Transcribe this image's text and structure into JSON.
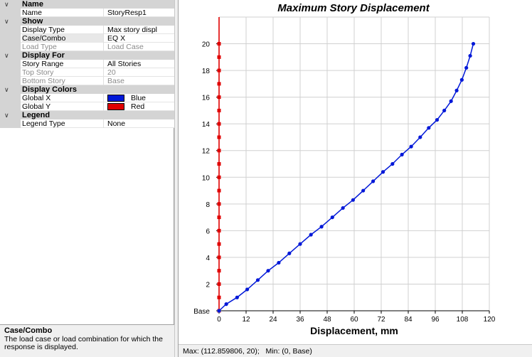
{
  "properties": {
    "sections": [
      {
        "title": "Name",
        "rows": [
          {
            "key": "Name",
            "value": "StoryResp1"
          }
        ]
      },
      {
        "title": "Show",
        "rows": [
          {
            "key": "Display Type",
            "value": "Max story displ"
          },
          {
            "key": "Case/Combo",
            "value": "EQ X",
            "selected": true
          },
          {
            "key": "Load Type",
            "value": "Load Case",
            "disabled": true
          }
        ]
      },
      {
        "title": "Display For",
        "rows": [
          {
            "key": "Story Range",
            "value": "All Stories"
          },
          {
            "key": "Top Story",
            "value": "20",
            "disabled": true
          },
          {
            "key": "Bottom Story",
            "value": "Base",
            "disabled": true
          }
        ]
      },
      {
        "title": "Display Colors",
        "rows": [
          {
            "key": "Global X",
            "color_name": "Blue",
            "color": "#0018d8"
          },
          {
            "key": "Global Y",
            "color_name": "Red",
            "color": "#e00000"
          }
        ]
      },
      {
        "title": "Legend",
        "rows": [
          {
            "key": "Legend Type",
            "value": "None"
          }
        ]
      }
    ]
  },
  "help": {
    "title": "Case/Combo",
    "text": "The load case or load combination for which the response is displayed."
  },
  "status_bar": "Max: (112.859806, 20);   Min: (0, Base)",
  "chart_data": {
    "type": "line",
    "title": "Maximum Story Displacement",
    "xlabel": "Displacement, mm",
    "ylabel": "",
    "xlim": [
      0,
      120
    ],
    "x_ticks": [
      0,
      12,
      24,
      36,
      48,
      60,
      72,
      84,
      96,
      108,
      120
    ],
    "y_ticks": [
      0,
      2,
      4,
      6,
      8,
      10,
      12,
      14,
      16,
      18,
      20
    ],
    "y_tick_labels": [
      "Base",
      "2",
      "4",
      "6",
      "8",
      "10",
      "12",
      "14",
      "16",
      "18",
      "20"
    ],
    "ylim": [
      0,
      22
    ],
    "grid": true,
    "series": [
      {
        "name": "Global X",
        "color": "#0018d8",
        "x": [
          0,
          3.2,
          8,
          12.5,
          17.2,
          21.8,
          26.5,
          31.2,
          36,
          40.8,
          45.5,
          50.3,
          55,
          59.5,
          64,
          68.4,
          72.8,
          77,
          81.2,
          85.3,
          89.3,
          93.1,
          96.8,
          100,
          103,
          105.5,
          107.8,
          109.8,
          111.5,
          112.9
        ],
        "y": [
          0,
          0.5,
          1,
          1.6,
          2.3,
          3,
          3.6,
          4.3,
          5,
          5.7,
          6.3,
          7,
          7.7,
          8.3,
          9,
          9.7,
          10.4,
          11,
          11.7,
          12.3,
          13,
          13.7,
          14.3,
          15,
          15.7,
          16.5,
          17.3,
          18.2,
          19.1,
          20
        ]
      },
      {
        "name": "Global Y",
        "color": "#e00000",
        "x": [
          0,
          0,
          0,
          0,
          0,
          0,
          0,
          0,
          0,
          0,
          0,
          0,
          0,
          0,
          0,
          0,
          0,
          0,
          0,
          0,
          0
        ],
        "y": [
          0,
          1,
          2,
          3,
          4,
          5,
          6,
          7,
          8,
          9,
          10,
          11,
          12,
          13,
          14,
          15,
          16,
          17,
          18,
          19,
          20
        ]
      }
    ]
  }
}
